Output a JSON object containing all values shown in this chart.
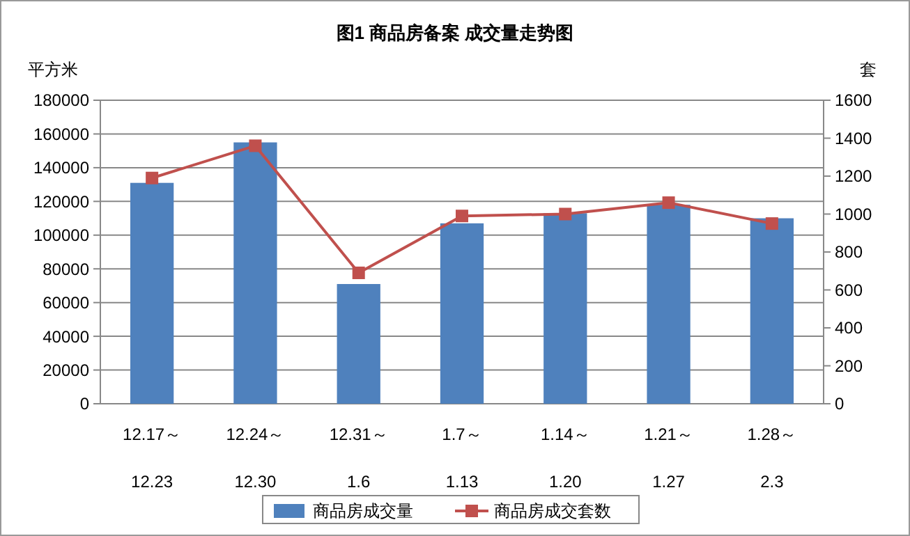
{
  "chart_data": {
    "type": "bar",
    "title": "图1   商品房备案 成交量走势图",
    "ylabel": "平方米",
    "y2label": "套",
    "categories": [
      "12.17～\n12.23",
      "12.24～\n12.30",
      "12.31～\n1.6",
      "1.7～\n1.13",
      "1.14～\n1.20",
      "1.21～\n1.27",
      "1.28～\n2.3"
    ],
    "series": [
      {
        "name": "商品房成交量",
        "color": "#4f81bd",
        "values": [
          131000,
          155000,
          71000,
          107000,
          113000,
          118000,
          110000
        ]
      },
      {
        "name": "商品房成交套数",
        "type": "line",
        "axis": "y2",
        "color": "#c0504d",
        "marker": "square",
        "values": [
          1190,
          1360,
          690,
          990,
          1000,
          1060,
          950
        ]
      }
    ],
    "ylim": [
      0,
      180000
    ],
    "yticks": [
      0,
      20000,
      40000,
      60000,
      80000,
      100000,
      120000,
      140000,
      160000,
      180000
    ],
    "y2lim": [
      0,
      1600
    ],
    "y2ticks": [
      0,
      200,
      400,
      600,
      800,
      1000,
      1200,
      1400,
      1600
    ],
    "grid": "y",
    "legend": "bottom"
  }
}
